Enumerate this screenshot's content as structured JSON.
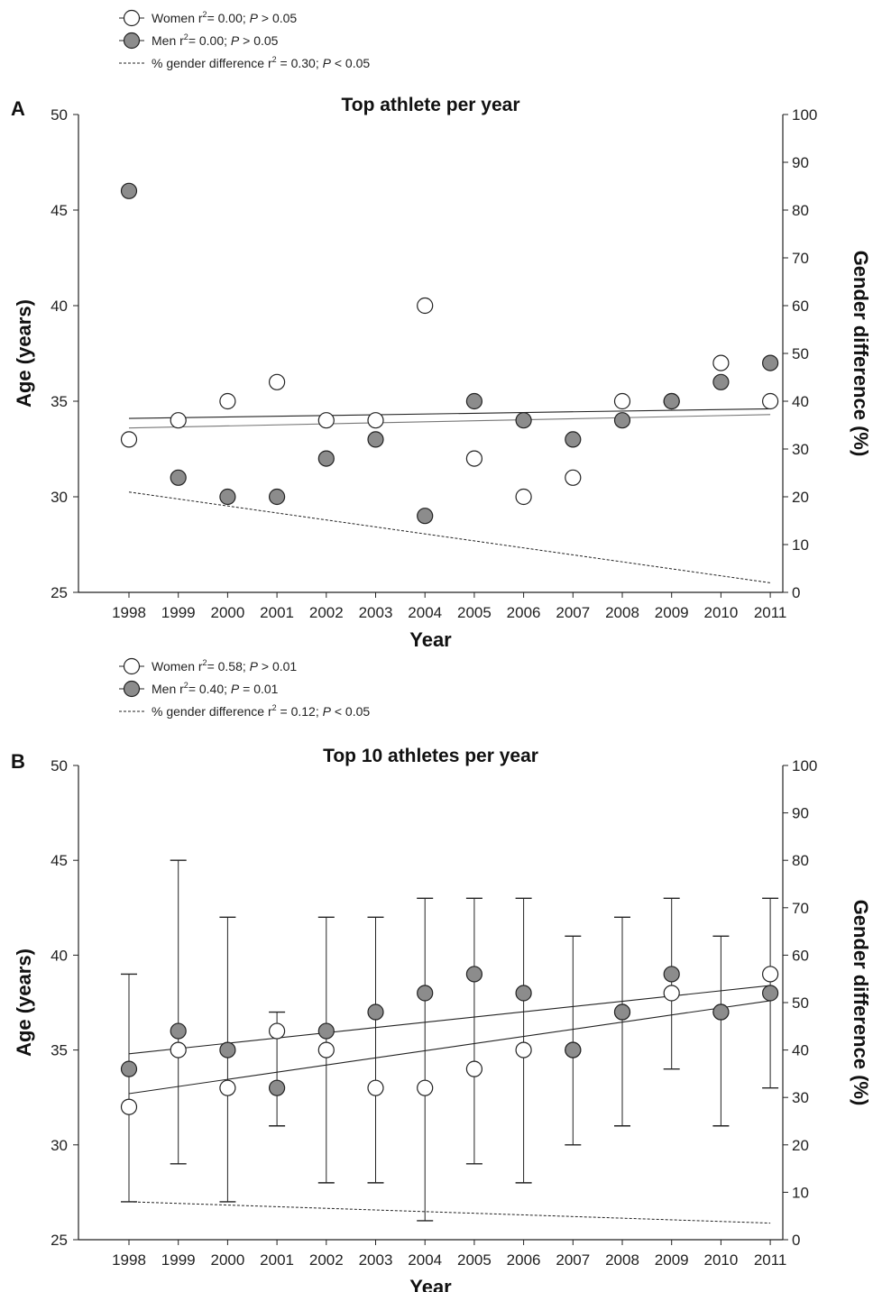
{
  "chart_data": [
    {
      "type": "scatter",
      "panel_label": "A",
      "title": "Top athlete per year",
      "xlabel": "Year",
      "ylabel": "Age (years)",
      "y2label": "Gender difference (%)",
      "categories": [
        "1998",
        "1999",
        "2000",
        "2001",
        "2002",
        "2003",
        "2004",
        "2005",
        "2006",
        "2007",
        "2008",
        "2009",
        "2010",
        "2011"
      ],
      "ylim": [
        25,
        50
      ],
      "y2lim": [
        0,
        100
      ],
      "yticks": [
        25,
        30,
        35,
        40,
        45,
        50
      ],
      "y2ticks": [
        0,
        10,
        20,
        30,
        40,
        50,
        60,
        70,
        80,
        90,
        100
      ],
      "grid": false,
      "legend_position": "top-left",
      "legend": {
        "women": {
          "label": "Women r",
          "sup": "2",
          "tail": "= 0.00; ",
          "p": "P",
          "rest": " > 0.05"
        },
        "men": {
          "label": "Men r",
          "sup": "2",
          "tail": "= 0.00; ",
          "p": "P",
          "rest": " > 0.05"
        },
        "diff": {
          "label": "% gender difference r",
          "sup": "2",
          "tail": " = 0.30; ",
          "p": "P",
          "rest": " < 0.05"
        }
      },
      "series": [
        {
          "name": "Women",
          "marker": "open-circle",
          "color": "#ffffff",
          "values": [
            33,
            34,
            35,
            36,
            34,
            34,
            40,
            32,
            30,
            31,
            35,
            35,
            37,
            35
          ],
          "trend": [
            33.6,
            34.3
          ]
        },
        {
          "name": "Men",
          "marker": "filled-circle",
          "color": "#8c8c8c",
          "values": [
            46,
            31,
            30,
            30,
            32,
            33,
            29,
            35,
            34,
            33,
            34,
            35,
            36,
            37
          ],
          "trend": [
            34.1,
            34.6
          ]
        },
        {
          "name": "% gender difference",
          "marker": "dashed-line",
          "axis": "right",
          "trend": [
            21,
            2
          ]
        }
      ]
    },
    {
      "type": "scatter",
      "panel_label": "B",
      "title": "Top 10 athletes per year",
      "xlabel": "Year",
      "ylabel": "Age (years)",
      "y2label": "Gender difference (%)",
      "categories": [
        "1998",
        "1999",
        "2000",
        "2001",
        "2002",
        "2003",
        "2004",
        "2005",
        "2006",
        "2007",
        "2008",
        "2009",
        "2010",
        "2011"
      ],
      "ylim": [
        25,
        50
      ],
      "y2lim": [
        0,
        100
      ],
      "yticks": [
        25,
        30,
        35,
        40,
        45,
        50
      ],
      "y2ticks": [
        0,
        10,
        20,
        30,
        40,
        50,
        60,
        70,
        80,
        90,
        100
      ],
      "grid": false,
      "legend_position": "top-left",
      "legend": {
        "women": {
          "label": "Women r",
          "sup": "2",
          "tail": "= 0.58; ",
          "p": "P",
          "rest": " > 0.01"
        },
        "men": {
          "label": "Men r",
          "sup": "2",
          "tail": "= 0.40; ",
          "p": "P",
          "rest": " = 0.01"
        },
        "diff": {
          "label": "% gender difference r",
          "sup": "2",
          "tail": " = 0.12; ",
          "p": "P",
          "rest": " < 0.05"
        }
      },
      "series": [
        {
          "name": "Women",
          "marker": "open-circle",
          "color": "#ffffff",
          "values": [
            32,
            35,
            33,
            36,
            35,
            33,
            33,
            34,
            35,
            35,
            37,
            38,
            37,
            39
          ],
          "error_low": [
            27,
            29,
            27,
            31,
            28,
            28,
            26,
            29,
            28,
            30,
            31,
            34,
            31,
            33
          ],
          "error_high": [
            39,
            45,
            42,
            37,
            42,
            42,
            43,
            43,
            43,
            41,
            42,
            43,
            41,
            43
          ],
          "trend": [
            32.7,
            37.6
          ]
        },
        {
          "name": "Men",
          "marker": "filled-circle",
          "color": "#8c8c8c",
          "values": [
            34,
            36,
            35,
            33,
            36,
            37,
            38,
            39,
            38,
            35,
            37,
            39,
            37,
            38
          ],
          "trend": [
            34.8,
            38.4
          ]
        },
        {
          "name": "% gender difference",
          "marker": "dashed-line",
          "axis": "right",
          "trend": [
            8,
            3.5
          ]
        }
      ]
    }
  ]
}
